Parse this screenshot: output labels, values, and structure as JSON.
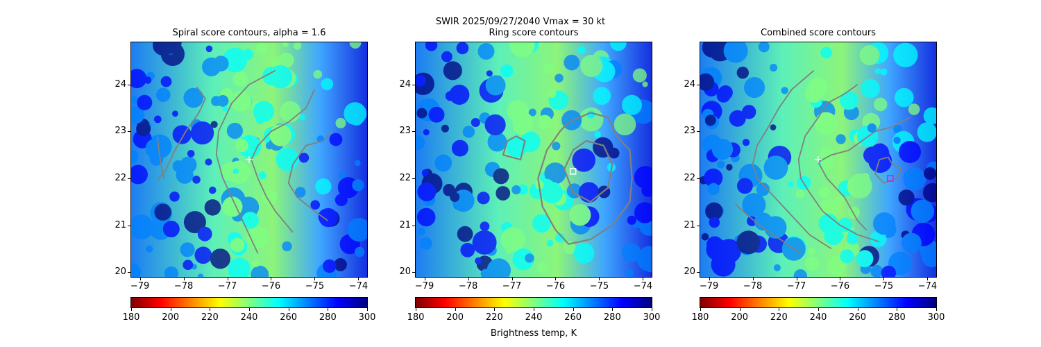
{
  "figure": {
    "suptitle": "SWIR  2025/09/27/2040    Vmax = 30 kt",
    "colorbar_label": "Brightness temp, K"
  },
  "colors": {
    "contour": "#808080",
    "center_marker": "#ffffff",
    "ring_marker": "#ffffff",
    "combined_marker": "#d81bd8"
  },
  "chart_data": [
    {
      "type": "heatmap",
      "title": "Spiral score contours, alpha =  1.6",
      "xlim": [
        -79.2,
        -73.8
      ],
      "ylim": [
        19.9,
        24.9
      ],
      "xticks": [
        -79,
        -78,
        -77,
        -76,
        -75,
        -74
      ],
      "yticks": [
        20,
        21,
        22,
        23,
        24
      ],
      "colormap": "jet_r",
      "clim": [
        180,
        300
      ],
      "colorbar_ticks": [
        180,
        200,
        220,
        240,
        260,
        280,
        300
      ],
      "markers": [
        {
          "kind": "plus",
          "lon": -76.5,
          "lat": 22.4
        }
      ],
      "contours": [
        [
          [
            -78.6,
            22.9
          ],
          [
            -78.55,
            22.5
          ],
          [
            -78.5,
            22.2
          ],
          [
            -78.45,
            22.0
          ]
        ],
        [
          [
            -77.7,
            23.95
          ],
          [
            -77.5,
            23.7
          ],
          [
            -77.65,
            23.4
          ],
          [
            -77.95,
            23.0
          ],
          [
            -78.2,
            22.6
          ],
          [
            -78.4,
            22.2
          ],
          [
            -78.6,
            21.95
          ]
        ],
        [
          [
            -75.9,
            24.3
          ],
          [
            -76.5,
            24.0
          ],
          [
            -76.9,
            23.6
          ],
          [
            -77.2,
            23.0
          ],
          [
            -77.25,
            22.5
          ],
          [
            -77.1,
            22.0
          ],
          [
            -76.9,
            21.6
          ],
          [
            -76.6,
            21.0
          ],
          [
            -76.3,
            20.4
          ]
        ],
        [
          [
            -75.0,
            23.9
          ],
          [
            -75.2,
            23.5
          ],
          [
            -75.6,
            23.2
          ],
          [
            -76.0,
            23.0
          ],
          [
            -76.3,
            22.7
          ],
          [
            -76.45,
            22.4
          ],
          [
            -76.3,
            22.0
          ],
          [
            -76.1,
            21.6
          ],
          [
            -75.9,
            21.3
          ],
          [
            -75.5,
            20.85
          ]
        ],
        [
          [
            -74.6,
            23.0
          ],
          [
            -74.8,
            22.8
          ],
          [
            -75.2,
            22.7
          ],
          [
            -75.5,
            22.3
          ],
          [
            -75.6,
            21.9
          ],
          [
            -75.4,
            21.6
          ],
          [
            -75.0,
            21.3
          ],
          [
            -74.7,
            21.1
          ]
        ]
      ]
    },
    {
      "type": "heatmap",
      "title": "Ring score contours",
      "xlim": [
        -79.2,
        -73.8
      ],
      "ylim": [
        19.9,
        24.9
      ],
      "xticks": [
        -79,
        -78,
        -77,
        -76,
        -75,
        -74
      ],
      "yticks": [
        20,
        21,
        22,
        23,
        24
      ],
      "colormap": "jet_r",
      "clim": [
        180,
        300
      ],
      "colorbar_ticks": [
        180,
        200,
        220,
        240,
        260,
        280,
        300
      ],
      "markers": [
        {
          "kind": "square",
          "lon": -75.6,
          "lat": 22.15
        }
      ],
      "contours": [
        [
          [
            -75.7,
            23.2
          ],
          [
            -75.2,
            23.4
          ],
          [
            -74.8,
            23.3
          ],
          [
            -74.6,
            22.9
          ],
          [
            -74.3,
            22.6
          ],
          [
            -74.25,
            22.0
          ],
          [
            -74.3,
            21.5
          ],
          [
            -74.7,
            21.0
          ],
          [
            -75.2,
            20.7
          ],
          [
            -75.7,
            20.6
          ],
          [
            -76.0,
            20.9
          ],
          [
            -76.3,
            21.4
          ],
          [
            -76.4,
            22.0
          ],
          [
            -76.2,
            22.6
          ],
          [
            -75.9,
            23.0
          ],
          [
            -75.7,
            23.2
          ]
        ],
        [
          [
            -75.3,
            22.8
          ],
          [
            -74.9,
            22.7
          ],
          [
            -74.7,
            22.3
          ],
          [
            -74.8,
            21.8
          ],
          [
            -75.2,
            21.5
          ],
          [
            -75.6,
            21.7
          ],
          [
            -75.8,
            22.2
          ],
          [
            -75.6,
            22.6
          ],
          [
            -75.3,
            22.8
          ]
        ],
        [
          [
            -76.9,
            22.9
          ],
          [
            -76.7,
            22.8
          ],
          [
            -76.8,
            22.4
          ],
          [
            -77.2,
            22.5
          ],
          [
            -77.1,
            22.8
          ],
          [
            -76.9,
            22.9
          ]
        ]
      ]
    },
    {
      "type": "heatmap",
      "title": "Combined score contours",
      "xlim": [
        -79.2,
        -73.8
      ],
      "ylim": [
        19.9,
        24.9
      ],
      "xticks": [
        -79,
        -78,
        -77,
        -76,
        -75,
        -74
      ],
      "yticks": [
        20,
        21,
        22,
        23,
        24
      ],
      "colormap": "jet_r",
      "clim": [
        180,
        300
      ],
      "colorbar_ticks": [
        180,
        200,
        220,
        240,
        260,
        280,
        300
      ],
      "markers": [
        {
          "kind": "plus",
          "lon": -76.5,
          "lat": 22.4
        },
        {
          "kind": "square",
          "lon": -74.85,
          "lat": 22.0
        }
      ],
      "contours": [
        [
          [
            -76.6,
            24.3
          ],
          [
            -77.1,
            23.9
          ],
          [
            -77.4,
            23.5
          ],
          [
            -77.7,
            23.0
          ],
          [
            -77.9,
            22.7
          ],
          [
            -78.0,
            22.3
          ],
          [
            -77.9,
            22.0
          ],
          [
            -77.6,
            21.7
          ],
          [
            -77.3,
            21.4
          ],
          [
            -77.0,
            21.1
          ],
          [
            -76.7,
            20.8
          ],
          [
            -76.2,
            20.5
          ]
        ],
        [
          [
            -75.6,
            24.0
          ],
          [
            -75.9,
            23.8
          ],
          [
            -76.3,
            23.6
          ],
          [
            -76.5,
            23.3
          ],
          [
            -76.8,
            22.9
          ],
          [
            -76.95,
            22.4
          ],
          [
            -76.9,
            22.0
          ],
          [
            -76.7,
            21.7
          ],
          [
            -76.4,
            21.3
          ],
          [
            -76.0,
            21.0
          ],
          [
            -75.6,
            20.8
          ],
          [
            -75.1,
            20.65
          ]
        ],
        [
          [
            -78.4,
            21.45
          ],
          [
            -78.1,
            21.2
          ],
          [
            -77.7,
            20.9
          ],
          [
            -77.2,
            20.6
          ],
          [
            -76.9,
            20.4
          ]
        ],
        [
          [
            -74.4,
            23.3
          ],
          [
            -74.8,
            23.1
          ],
          [
            -75.2,
            23.0
          ],
          [
            -75.5,
            22.8
          ],
          [
            -75.8,
            22.6
          ],
          [
            -76.2,
            22.5
          ],
          [
            -76.5,
            22.35
          ],
          [
            -76.3,
            22.0
          ],
          [
            -75.9,
            21.6
          ],
          [
            -75.6,
            21.1
          ],
          [
            -75.4,
            20.9
          ]
        ],
        [
          [
            -74.8,
            22.3
          ],
          [
            -74.6,
            22.2
          ],
          [
            -74.7,
            22.0
          ],
          [
            -75.0,
            21.9
          ],
          [
            -75.2,
            22.1
          ],
          [
            -75.1,
            22.4
          ],
          [
            -74.9,
            22.45
          ],
          [
            -74.8,
            22.3
          ]
        ]
      ]
    }
  ]
}
